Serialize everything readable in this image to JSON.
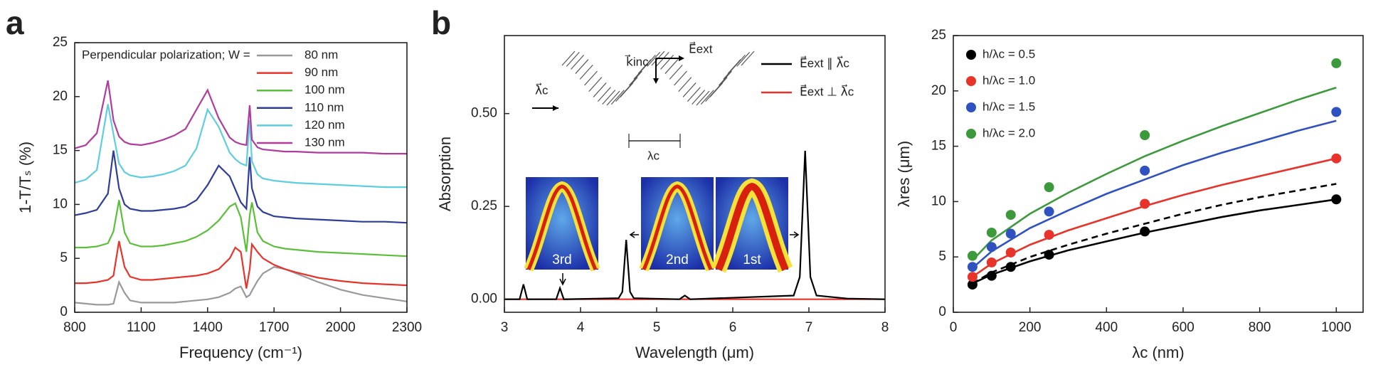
{
  "chart_data": [
    {
      "type": "line",
      "panel_label": "a",
      "xlabel": "Frequency (cm⁻¹)",
      "ylabel": "1-T/Tₛ (%)",
      "legend_title": "Perpendicular polarization;  W =",
      "legend": "upper right",
      "xlim": [
        800,
        2300
      ],
      "ylim": [
        0,
        25
      ],
      "xticks": [
        800,
        1100,
        1400,
        1700,
        2000,
        2300
      ],
      "yticks": [
        0,
        5,
        10,
        15,
        20,
        25
      ],
      "x": [
        800,
        850,
        900,
        950,
        975,
        1000,
        1025,
        1050,
        1100,
        1150,
        1200,
        1250,
        1300,
        1350,
        1400,
        1450,
        1500,
        1525,
        1550,
        1575,
        1590,
        1600,
        1625,
        1650,
        1700,
        1750,
        1800,
        1900,
        2000,
        2100,
        2200,
        2300
      ],
      "series": [
        {
          "name": "80 nm",
          "color": "#999999",
          "values": [
            0.9,
            0.8,
            0.7,
            0.7,
            0.8,
            2.8,
            1.8,
            1.1,
            0.9,
            0.9,
            0.9,
            0.9,
            1.0,
            1.1,
            1.2,
            1.4,
            1.8,
            2.2,
            2.4,
            1.4,
            1.6,
            2.0,
            2.9,
            3.6,
            4.2,
            4.0,
            3.6,
            2.8,
            2.1,
            1.6,
            1.3,
            1.0
          ]
        },
        {
          "name": "90 nm",
          "color": "#e8332a",
          "values": [
            2.7,
            2.7,
            2.8,
            3.0,
            3.4,
            6.6,
            4.2,
            3.3,
            3.0,
            3.0,
            3.1,
            3.2,
            3.3,
            3.4,
            3.6,
            4.0,
            5.0,
            6.0,
            5.6,
            2.2,
            4.0,
            6.3,
            5.6,
            5.0,
            4.4,
            4.0,
            3.7,
            3.2,
            2.9,
            2.7,
            2.6,
            2.5
          ]
        },
        {
          "name": "100 nm",
          "color": "#5cbf3a",
          "values": [
            6.0,
            6.0,
            6.1,
            6.4,
            7.5,
            10.4,
            7.4,
            6.4,
            6.1,
            6.1,
            6.2,
            6.4,
            6.6,
            7.0,
            7.6,
            8.5,
            9.8,
            10.1,
            8.8,
            5.6,
            9.0,
            10.2,
            7.4,
            6.6,
            6.1,
            5.9,
            5.8,
            5.6,
            5.5,
            5.4,
            5.3,
            5.2
          ]
        },
        {
          "name": "110 nm",
          "color": "#2e3d9a",
          "values": [
            9.0,
            9.2,
            9.5,
            11.0,
            15.0,
            11.5,
            10.0,
            9.6,
            9.4,
            9.4,
            9.5,
            9.6,
            9.8,
            10.4,
            11.8,
            13.6,
            12.6,
            11.4,
            10.2,
            9.6,
            14.4,
            11.5,
            9.8,
            9.3,
            8.9,
            8.8,
            8.7,
            8.6,
            8.5,
            8.4,
            8.4,
            8.3
          ]
        },
        {
          "name": "120 nm",
          "color": "#5fcde0",
          "values": [
            12.0,
            12.3,
            13.2,
            19.3,
            16.5,
            13.8,
            13.0,
            12.7,
            12.5,
            12.6,
            12.8,
            13.1,
            13.6,
            15.2,
            18.8,
            17.2,
            14.8,
            14.2,
            13.8,
            13.6,
            17.8,
            14.0,
            12.8,
            12.4,
            12.2,
            12.1,
            12.0,
            11.9,
            11.8,
            11.7,
            11.6,
            11.6
          ]
        },
        {
          "name": "130 nm",
          "color": "#b03c9e",
          "values": [
            15.2,
            15.5,
            16.6,
            21.5,
            17.8,
            16.3,
            15.8,
            15.6,
            15.5,
            15.7,
            16.0,
            16.4,
            17.0,
            18.8,
            20.6,
            18.0,
            16.2,
            15.8,
            15.6,
            15.5,
            19.2,
            16.0,
            15.3,
            15.1,
            15.0,
            14.9,
            14.9,
            14.8,
            14.8,
            14.8,
            14.7,
            14.7
          ]
        }
      ]
    },
    {
      "type": "line",
      "panel_label": "b",
      "xlabel": "Wavelength (μm)",
      "ylabel": "Absorption",
      "legend": "upper right",
      "xlim": [
        3,
        8
      ],
      "ylim": [
        -0.035,
        0.71
      ],
      "xticks": [
        3,
        4,
        5,
        6,
        7,
        8
      ],
      "yticks": [
        {
          "value": 0,
          "label": "0.00"
        },
        0.25,
        {
          "value": 0.5,
          "label": "0.50"
        }
      ],
      "annotations": [
        "λ⃗c",
        "k⃗inc",
        "E⃗ext",
        "λc",
        "3rd",
        "2nd",
        "1st"
      ],
      "x": [
        3,
        3.2,
        3.25,
        3.3,
        3.68,
        3.73,
        3.78,
        4.5,
        4.55,
        4.6,
        4.65,
        4.7,
        5.3,
        5.37,
        5.44,
        6.8,
        6.88,
        6.95,
        7.02,
        7.1,
        7.5,
        8
      ],
      "series": [
        {
          "name": "E⃗ext ∥ λ⃗c",
          "color": "#000000",
          "values": [
            0,
            0,
            0.04,
            0,
            0,
            0.03,
            0,
            0.003,
            0.02,
            0.16,
            0.02,
            0.003,
            0,
            0.01,
            0,
            0.01,
            0.06,
            0.4,
            0.06,
            0.01,
            0.002,
            0
          ]
        },
        {
          "name": "E⃗ext ⊥ λ⃗c",
          "color": "#e8332a",
          "values": [
            0,
            0,
            0,
            0,
            0,
            0,
            0,
            0,
            0,
            0,
            0,
            0,
            0,
            0,
            0,
            0,
            0,
            0,
            0,
            0,
            0,
            0
          ]
        }
      ]
    },
    {
      "type": "scatter",
      "xlabel": "λc (nm)",
      "ylabel": "λres (μm)",
      "legend": "upper left",
      "xlim": [
        0,
        1070
      ],
      "ylim": [
        0,
        25
      ],
      "xticks": [
        0,
        200,
        400,
        600,
        800,
        1000
      ],
      "yticks": [
        0,
        5,
        10,
        15,
        20,
        25
      ],
      "x": [
        50,
        100,
        150,
        250,
        500,
        1000
      ],
      "series": [
        {
          "name": "h/λc = 0.5",
          "color": "#000000",
          "values": [
            2.5,
            3.3,
            4.1,
            5.2,
            7.3,
            10.2
          ]
        },
        {
          "name": "h/λc = 1.0",
          "color": "#e8332a",
          "values": [
            3.2,
            4.5,
            5.4,
            7.0,
            9.8,
            13.9
          ]
        },
        {
          "name": "h/λc = 1.5",
          "color": "#2f52c0",
          "values": [
            4.1,
            5.9,
            7.1,
            9.1,
            12.8,
            18.1
          ]
        },
        {
          "name": "h/λc = 2.0",
          "color": "#3c9a3c",
          "values": [
            5.1,
            7.2,
            8.8,
            11.3,
            16.0,
            22.5
          ]
        }
      ],
      "fit_x": [
        50,
        100,
        200,
        300,
        400,
        500,
        600,
        700,
        800,
        900,
        1000
      ],
      "fits": [
        {
          "color": "#000000",
          "dashed": false,
          "values": [
            2.6,
            3.4,
            4.6,
            5.6,
            6.4,
            7.2,
            7.9,
            8.6,
            9.2,
            9.7,
            10.2
          ]
        },
        {
          "color": "#000000",
          "dashed": true,
          "values": [
            2.6,
            3.6,
            5.0,
            6.1,
            7.1,
            8.0,
            8.9,
            9.7,
            10.4,
            11.0,
            11.6
          ]
        },
        {
          "color": "#e8332a",
          "dashed": false,
          "values": [
            3.2,
            4.4,
            6.1,
            7.4,
            8.5,
            9.6,
            10.6,
            11.5,
            12.3,
            13.1,
            13.9
          ]
        },
        {
          "color": "#2f52c0",
          "dashed": false,
          "values": [
            4.0,
            5.5,
            7.6,
            9.2,
            10.7,
            12.0,
            13.3,
            14.4,
            15.4,
            16.4,
            17.3
          ]
        },
        {
          "color": "#3c9a3c",
          "dashed": false,
          "values": [
            4.7,
            6.5,
            8.9,
            10.8,
            12.5,
            14.1,
            15.5,
            16.8,
            18.0,
            19.2,
            20.3
          ]
        }
      ]
    }
  ]
}
